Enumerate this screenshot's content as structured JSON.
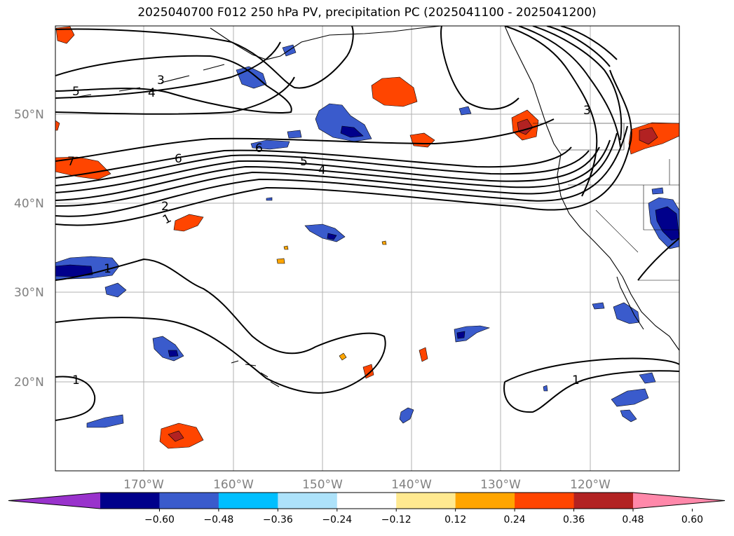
{
  "title": "2025040700 F012 250 hPa PV, precipitation PC (2025041100 - 2025041200)",
  "lat_labels": [
    "50°N",
    "40°N",
    "30°N",
    "20°N"
  ],
  "lon_labels": [
    "170°W",
    "160°W",
    "150°W",
    "140°W",
    "130°W",
    "120°W"
  ],
  "contour_labels": [
    "1",
    "2",
    "3",
    "4",
    "5",
    "6",
    "7",
    "6",
    "5",
    "4",
    "3",
    "1",
    "1",
    "1"
  ],
  "colorbar": {
    "ticks": [
      "−0.60",
      "−0.48",
      "−0.36",
      "−0.24",
      "−0.12",
      "0.12",
      "0.24",
      "0.36",
      "0.48",
      "0.60"
    ],
    "colors": [
      "#9932CC",
      "#00008B",
      "#3A5BCC",
      "#00BFFF",
      "#ADE2FA",
      "#FFFFFF",
      "#FFE990",
      "#FFA500",
      "#FF4500",
      "#B22222",
      "#FF88AA"
    ]
  },
  "palette": {
    "contour": "#000000",
    "grid": "#b0b0b0",
    "coast": "#000000"
  }
}
